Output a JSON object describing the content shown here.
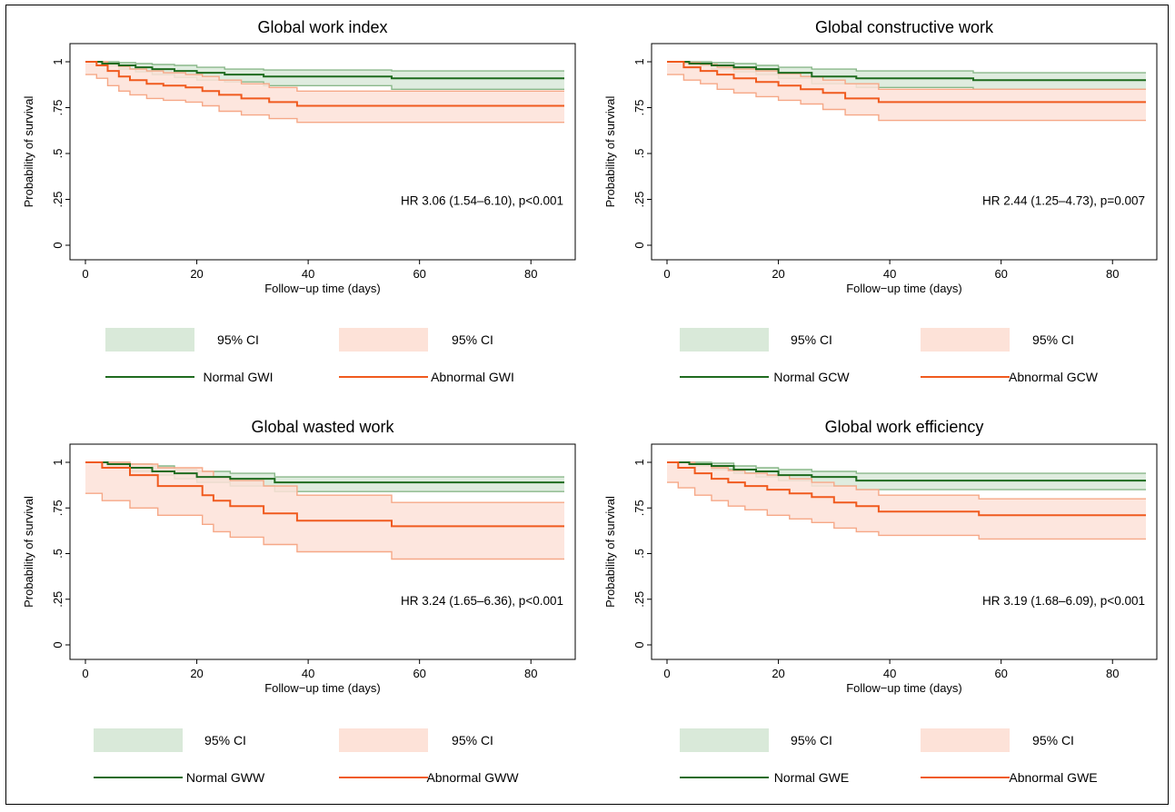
{
  "colors": {
    "normal_line": "#1f6b1f",
    "normal_ci": "#d9e9d9",
    "normal_ci_edge": "#8ab88a",
    "abnormal_line": "#f05a1e",
    "abnormal_ci": "#fde2d8",
    "abnormal_ci_edge": "#f6a887"
  },
  "chart_data": [
    {
      "type": "line",
      "title": "Global work index",
      "xlabel": "Follow−up time (days)",
      "ylabel": "Probability of survival",
      "xlim": [
        0,
        86
      ],
      "ylim": [
        0,
        1
      ],
      "x_ticks": [
        "0",
        "20",
        "40",
        "60",
        "80"
      ],
      "y_ticks": [
        "0",
        ".25",
        ".5",
        ".75",
        "1"
      ],
      "annotation": "HR 3.06 (1.54–6.10), p<0.001",
      "legend": {
        "ci_normal": "95% CI",
        "ci_abnormal": "95% CI",
        "normal": "Normal GWI",
        "abnormal": "Abnormal GWI"
      },
      "series": [
        {
          "name": "Normal GWI",
          "x": [
            0,
            3,
            6,
            9,
            12,
            16,
            20,
            25,
            32,
            55,
            86
          ],
          "y": [
            1,
            0.99,
            0.98,
            0.97,
            0.96,
            0.95,
            0.94,
            0.93,
            0.92,
            0.91,
            0.91
          ],
          "ci_upper": [
            1,
            1,
            0.995,
            0.99,
            0.985,
            0.98,
            0.97,
            0.96,
            0.955,
            0.95,
            0.95
          ],
          "ci_lower": [
            1,
            0.98,
            0.96,
            0.945,
            0.93,
            0.915,
            0.9,
            0.89,
            0.87,
            0.85,
            0.85
          ]
        },
        {
          "name": "Abnormal GWI",
          "x": [
            0,
            2,
            4,
            6,
            8,
            11,
            14,
            18,
            21,
            24,
            28,
            33,
            38,
            86
          ],
          "y": [
            1,
            0.98,
            0.95,
            0.92,
            0.9,
            0.88,
            0.87,
            0.86,
            0.84,
            0.82,
            0.8,
            0.78,
            0.76,
            0.76
          ],
          "ci_upper": [
            1,
            1,
            0.99,
            0.975,
            0.96,
            0.95,
            0.94,
            0.93,
            0.92,
            0.9,
            0.88,
            0.86,
            0.84,
            0.84
          ],
          "ci_lower": [
            0.93,
            0.91,
            0.87,
            0.84,
            0.82,
            0.8,
            0.79,
            0.78,
            0.76,
            0.73,
            0.71,
            0.69,
            0.67,
            0.67
          ]
        }
      ]
    },
    {
      "type": "line",
      "title": "Global constructive work",
      "xlabel": "Follow−up time (days)",
      "ylabel": "Probability of survival",
      "xlim": [
        0,
        86
      ],
      "ylim": [
        0,
        1
      ],
      "x_ticks": [
        "0",
        "20",
        "40",
        "60",
        "80"
      ],
      "y_ticks": [
        "0",
        ".25",
        ".5",
        ".75",
        "1"
      ],
      "annotation": "HR 2.44 (1.25–4.73), p=0.007",
      "legend": {
        "ci_normal": "95% CI",
        "ci_abnormal": "95% CI",
        "normal": "Normal GCW",
        "abnormal": "Abnormal GCW"
      },
      "series": [
        {
          "name": "Normal GCW",
          "x": [
            0,
            4,
            8,
            12,
            16,
            20,
            26,
            34,
            55,
            86
          ],
          "y": [
            1,
            0.99,
            0.98,
            0.97,
            0.96,
            0.94,
            0.92,
            0.91,
            0.9,
            0.9
          ],
          "ci_upper": [
            1,
            1,
            0.995,
            0.99,
            0.98,
            0.97,
            0.96,
            0.95,
            0.94,
            0.94
          ],
          "ci_lower": [
            1,
            0.98,
            0.96,
            0.945,
            0.93,
            0.91,
            0.88,
            0.86,
            0.85,
            0.85
          ]
        },
        {
          "name": "Abnormal GCW",
          "x": [
            0,
            3,
            6,
            9,
            12,
            16,
            20,
            24,
            28,
            32,
            38,
            86
          ],
          "y": [
            1,
            0.97,
            0.95,
            0.93,
            0.91,
            0.89,
            0.87,
            0.85,
            0.83,
            0.8,
            0.78,
            0.78
          ],
          "ci_upper": [
            1,
            0.995,
            0.985,
            0.97,
            0.96,
            0.95,
            0.935,
            0.92,
            0.9,
            0.88,
            0.85,
            0.85
          ],
          "ci_lower": [
            0.93,
            0.9,
            0.88,
            0.85,
            0.83,
            0.81,
            0.79,
            0.77,
            0.74,
            0.71,
            0.68,
            0.68
          ]
        }
      ]
    },
    {
      "type": "line",
      "title": "Global wasted work",
      "xlabel": "Follow−up time (days)",
      "ylabel": "Probability of survival",
      "xlim": [
        0,
        86
      ],
      "ylim": [
        0,
        1
      ],
      "x_ticks": [
        "0",
        "20",
        "40",
        "60",
        "80"
      ],
      "y_ticks": [
        "0",
        ".25",
        ".5",
        ".75",
        "1"
      ],
      "annotation": "HR 3.24 (1.65–6.36), p<0.001",
      "legend": {
        "ci_normal": "95% CI",
        "ci_abnormal": "95% CI",
        "normal": "Normal GWW",
        "abnormal": "Abnormal GWW"
      },
      "series": [
        {
          "name": "Normal GWW",
          "x": [
            0,
            4,
            8,
            12,
            16,
            20,
            26,
            34,
            86
          ],
          "y": [
            1,
            0.99,
            0.97,
            0.95,
            0.94,
            0.92,
            0.91,
            0.89,
            0.89
          ],
          "ci_upper": [
            1,
            1,
            0.99,
            0.98,
            0.96,
            0.95,
            0.94,
            0.92,
            0.92
          ],
          "ci_lower": [
            1,
            0.98,
            0.95,
            0.93,
            0.91,
            0.89,
            0.87,
            0.84,
            0.84
          ]
        },
        {
          "name": "Abnormal GWW",
          "x": [
            0,
            3,
            8,
            13,
            21,
            23,
            26,
            32,
            38,
            55,
            86
          ],
          "y": [
            1,
            0.97,
            0.93,
            0.87,
            0.82,
            0.79,
            0.76,
            0.72,
            0.68,
            0.65,
            0.65
          ],
          "ci_upper": [
            1,
            1,
            0.99,
            0.97,
            0.95,
            0.92,
            0.9,
            0.87,
            0.82,
            0.78,
            0.78
          ],
          "ci_lower": [
            0.83,
            0.79,
            0.75,
            0.71,
            0.66,
            0.62,
            0.59,
            0.55,
            0.51,
            0.47,
            0.47
          ]
        }
      ]
    },
    {
      "type": "line",
      "title": "Global work efficiency",
      "xlabel": "Follow−up time (days)",
      "ylabel": "Probability of survival",
      "xlim": [
        0,
        86
      ],
      "ylim": [
        0,
        1
      ],
      "x_ticks": [
        "0",
        "20",
        "40",
        "60",
        "80"
      ],
      "y_ticks": [
        "0",
        ".25",
        ".5",
        ".75",
        "1"
      ],
      "annotation": "HR 3.19 (1.68–6.09), p<0.001",
      "legend": {
        "ci_normal": "95% CI",
        "ci_abnormal": "95% CI",
        "normal": "Normal GWE",
        "abnormal": "Abnormal GWE"
      },
      "series": [
        {
          "name": "Normal GWE",
          "x": [
            0,
            4,
            8,
            12,
            16,
            20,
            26,
            34,
            86
          ],
          "y": [
            1,
            0.99,
            0.98,
            0.96,
            0.95,
            0.93,
            0.92,
            0.9,
            0.9
          ],
          "ci_upper": [
            1,
            1,
            0.995,
            0.98,
            0.97,
            0.96,
            0.95,
            0.94,
            0.94
          ],
          "ci_lower": [
            1,
            0.98,
            0.96,
            0.94,
            0.92,
            0.9,
            0.87,
            0.85,
            0.85
          ]
        },
        {
          "name": "Abnormal GWE",
          "x": [
            0,
            2,
            5,
            8,
            11,
            14,
            18,
            22,
            26,
            30,
            34,
            38,
            56,
            86
          ],
          "y": [
            1,
            0.97,
            0.94,
            0.91,
            0.89,
            0.87,
            0.85,
            0.83,
            0.81,
            0.78,
            0.76,
            0.73,
            0.71,
            0.71
          ],
          "ci_upper": [
            1,
            1,
            0.99,
            0.97,
            0.955,
            0.94,
            0.93,
            0.91,
            0.89,
            0.87,
            0.85,
            0.82,
            0.8,
            0.8
          ],
          "ci_lower": [
            0.89,
            0.86,
            0.82,
            0.79,
            0.76,
            0.74,
            0.71,
            0.69,
            0.67,
            0.64,
            0.62,
            0.6,
            0.58,
            0.58
          ]
        }
      ]
    }
  ]
}
